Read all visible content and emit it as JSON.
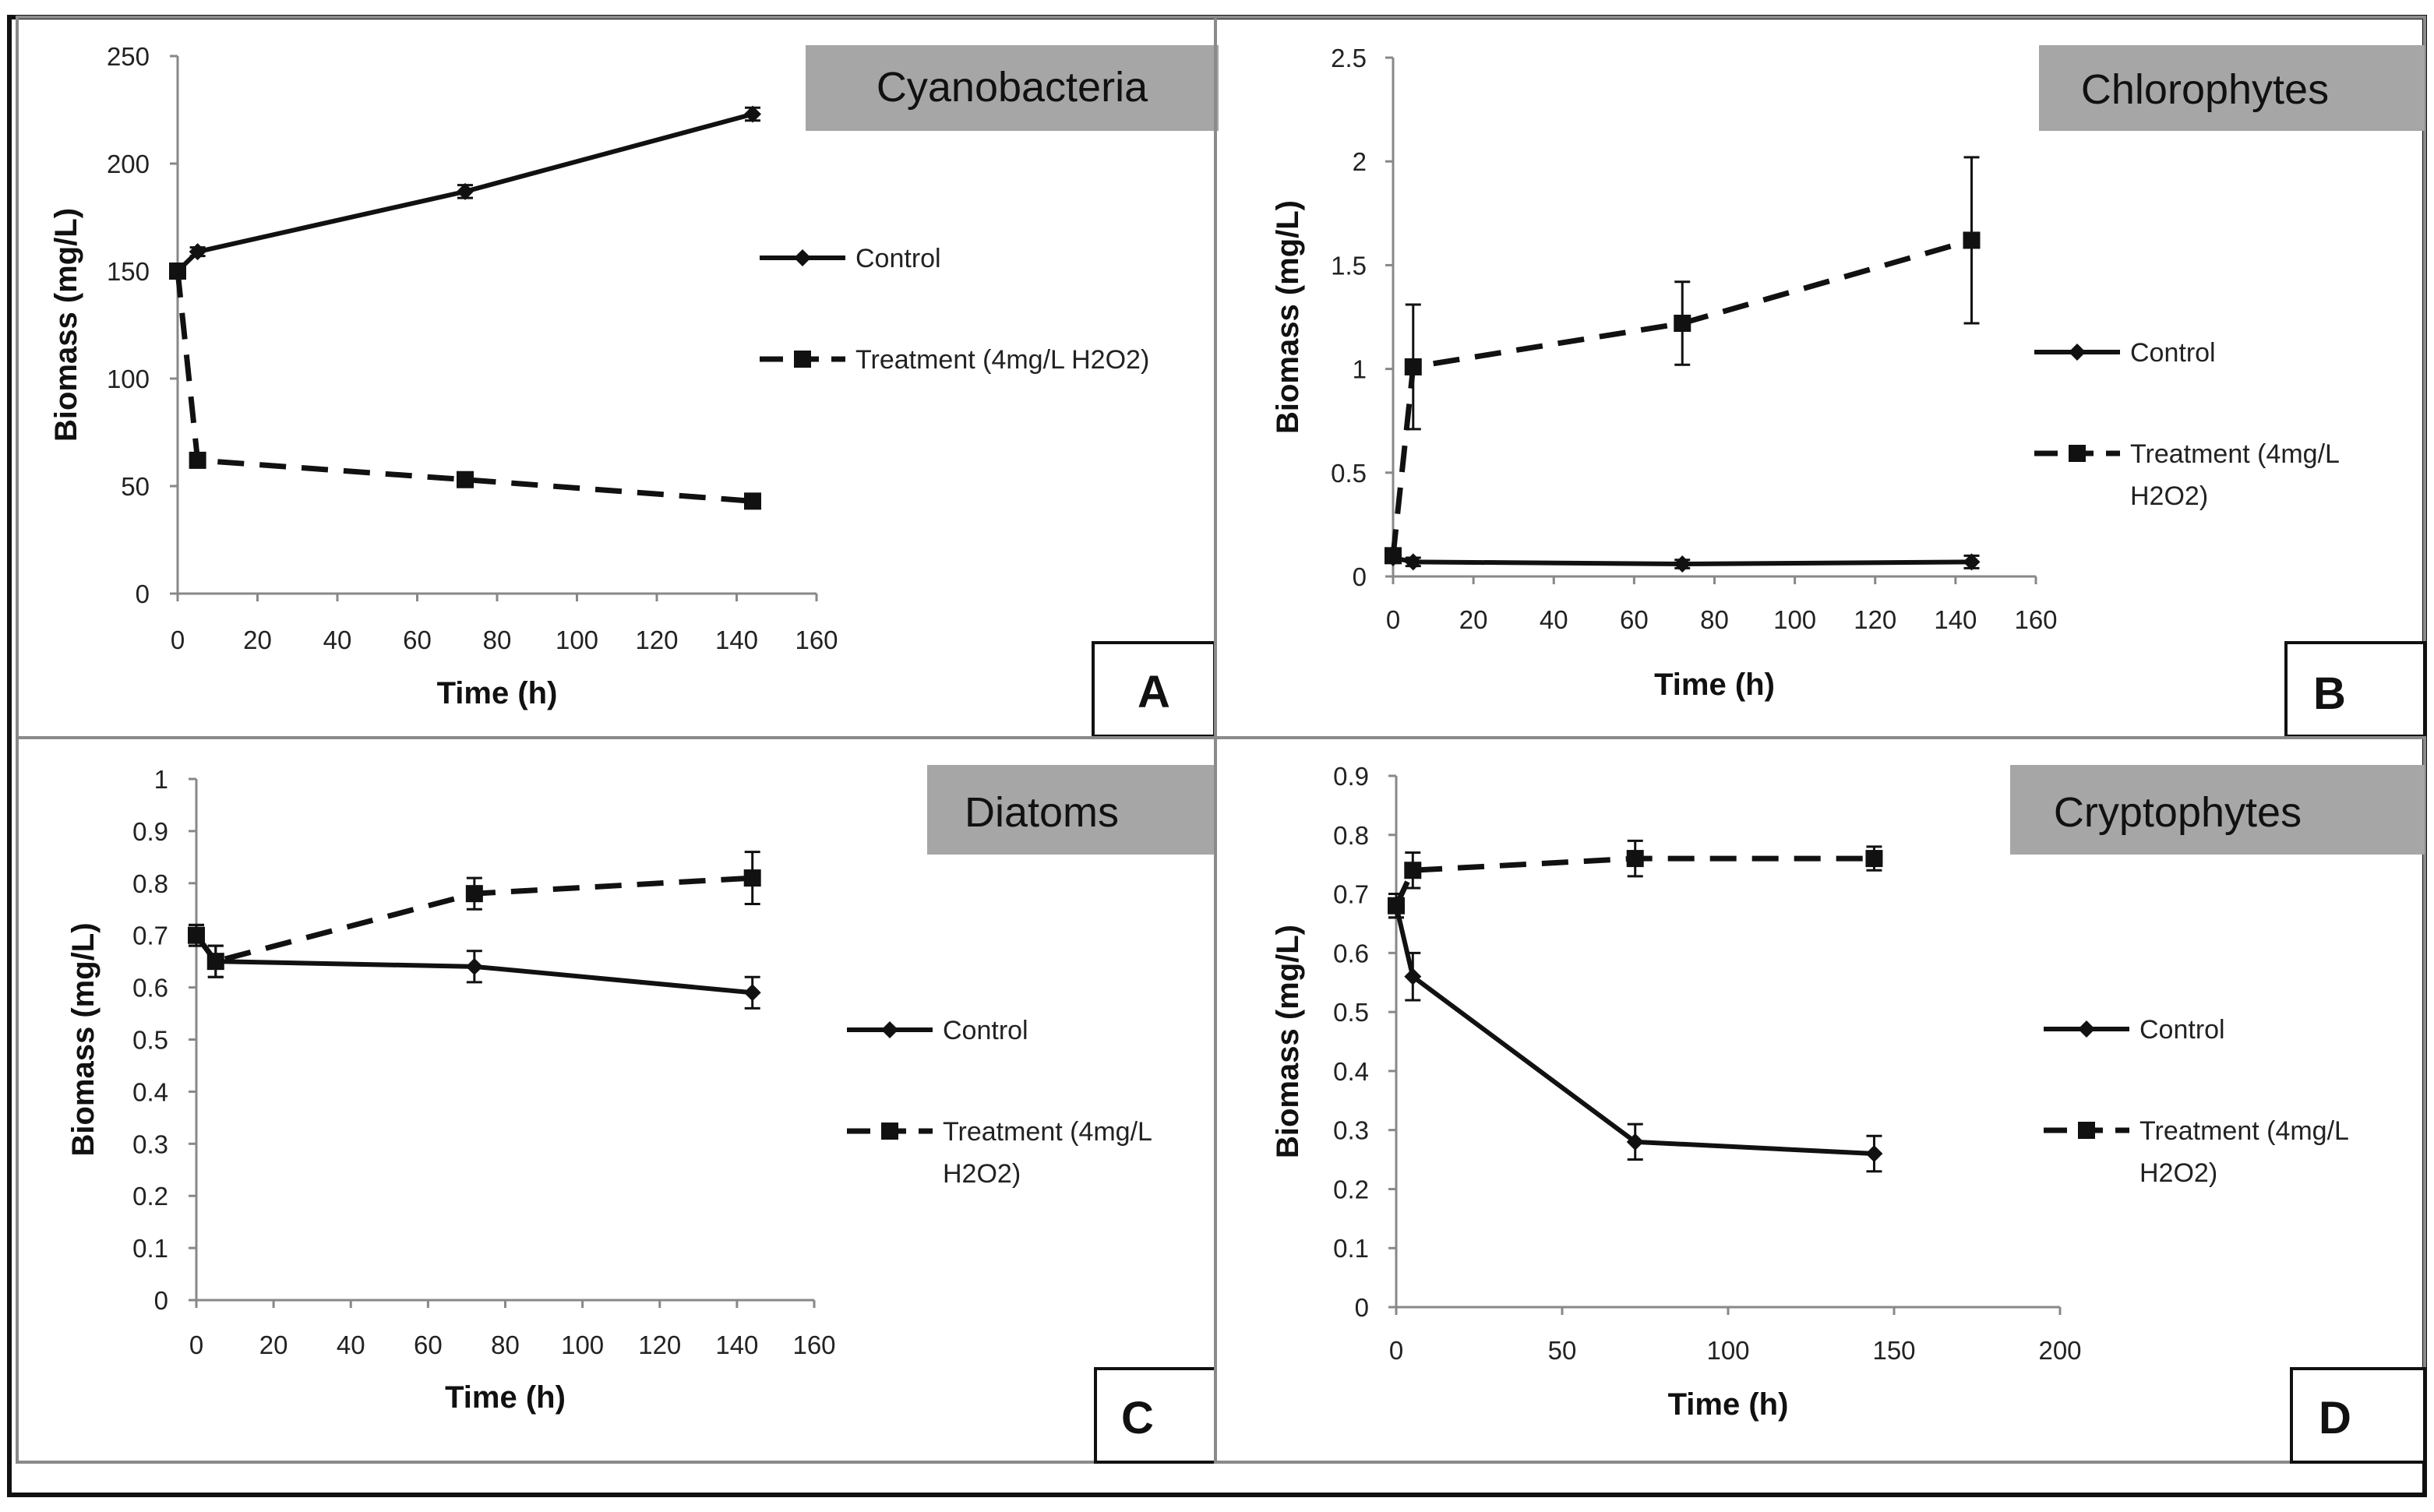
{
  "figure": {
    "legend_labels": {
      "control": "Control",
      "treatment": "Treatment (4mg/L H2O2)"
    }
  },
  "chart_data": [
    {
      "type": "line",
      "panel": "A",
      "title": "Cyanobacteria",
      "xlabel": "Time (h)",
      "ylabel": "Biomass (mg/L)",
      "xlim": [
        0,
        160
      ],
      "xticks": [
        0,
        20,
        40,
        60,
        80,
        100,
        120,
        140,
        160
      ],
      "xtick_labels": [
        "0",
        "20",
        "40",
        "60",
        "80",
        "100",
        "120",
        "140",
        "160"
      ],
      "ylim": [
        0,
        250
      ],
      "yticks": [
        0,
        50,
        100,
        150,
        200,
        250
      ],
      "ytick_labels": [
        "0",
        "50",
        "100",
        "150",
        "200",
        "250"
      ],
      "legend": {
        "position": "right",
        "labels": [
          "Control",
          "Treatment (4mg/L H2O2)"
        ]
      },
      "series": [
        {
          "name": "Control",
          "style": "solid",
          "marker": "diamond",
          "x": [
            0,
            5,
            72,
            144
          ],
          "y": [
            150,
            159,
            187,
            223
          ],
          "err": [
            2,
            2,
            3,
            3
          ]
        },
        {
          "name": "Treatment (4mg/L H2O2)",
          "style": "dashed",
          "marker": "square",
          "x": [
            0,
            5,
            72,
            144
          ],
          "y": [
            150,
            62,
            53,
            43
          ],
          "err": [
            2,
            2,
            2,
            2
          ]
        }
      ]
    },
    {
      "type": "line",
      "panel": "B",
      "title": "Chlorophytes",
      "xlabel": "Time (h)",
      "ylabel": "Biomass (mg/L)",
      "xlim": [
        0,
        160
      ],
      "xticks": [
        0,
        20,
        40,
        60,
        80,
        100,
        120,
        140,
        160
      ],
      "xtick_labels": [
        "0",
        "20",
        "40",
        "60",
        "80",
        "100",
        "120",
        "140",
        "160"
      ],
      "ylim": [
        0,
        2.5
      ],
      "yticks": [
        0,
        0.5,
        1,
        1.5,
        2,
        2.5
      ],
      "ytick_labels": [
        "0",
        "0.5",
        "1",
        "1.5",
        "2",
        "2.5"
      ],
      "legend": {
        "position": "right",
        "labels": [
          "Control",
          "Treatment (4mg/L",
          "H2O2)"
        ]
      },
      "series": [
        {
          "name": "Control",
          "style": "solid",
          "marker": "diamond",
          "x": [
            0,
            5,
            72,
            144
          ],
          "y": [
            0.09,
            0.07,
            0.06,
            0.07
          ],
          "err": [
            0.02,
            0.02,
            0.02,
            0.03
          ]
        },
        {
          "name": "Treatment (4mg/L H2O2)",
          "style": "dashed",
          "marker": "square",
          "x": [
            0,
            5,
            72,
            144
          ],
          "y": [
            0.1,
            1.01,
            1.22,
            1.62
          ],
          "err": [
            0.02,
            0.3,
            0.2,
            0.4
          ]
        }
      ]
    },
    {
      "type": "line",
      "panel": "C",
      "title": "Diatoms",
      "xlabel": "Time (h)",
      "ylabel": "Biomass (mg/L)",
      "xlim": [
        0,
        160
      ],
      "xticks": [
        0,
        20,
        40,
        60,
        80,
        100,
        120,
        140,
        160
      ],
      "xtick_labels": [
        "0",
        "20",
        "40",
        "60",
        "80",
        "100",
        "120",
        "140",
        "160"
      ],
      "ylim": [
        0,
        1
      ],
      "yticks": [
        0,
        0.1,
        0.2,
        0.3,
        0.4,
        0.5,
        0.6,
        0.7,
        0.8,
        0.9,
        1
      ],
      "ytick_labels": [
        "0",
        "0.1",
        "0.2",
        "0.3",
        "0.4",
        "0.5",
        "0.6",
        "0.7",
        "0.8",
        "0.9",
        "1"
      ],
      "legend": {
        "position": "right",
        "labels": [
          "Control",
          "Treatment (4mg/L",
          "H2O2)"
        ]
      },
      "series": [
        {
          "name": "Control",
          "style": "solid",
          "marker": "diamond",
          "x": [
            0,
            5,
            72,
            144
          ],
          "y": [
            0.7,
            0.65,
            0.64,
            0.59
          ],
          "err": [
            0.02,
            0.03,
            0.03,
            0.03
          ]
        },
        {
          "name": "Treatment (4mg/L H2O2)",
          "style": "dashed",
          "marker": "square",
          "x": [
            0,
            5,
            72,
            144
          ],
          "y": [
            0.7,
            0.65,
            0.78,
            0.81
          ],
          "err": [
            0.02,
            0.03,
            0.03,
            0.05
          ]
        }
      ]
    },
    {
      "type": "line",
      "panel": "D",
      "title": "Cryptophytes",
      "xlabel": "Time (h)",
      "ylabel": "Biomass (mg/L)",
      "xlim": [
        0,
        200
      ],
      "xticks": [
        0,
        50,
        100,
        150,
        200
      ],
      "xtick_labels": [
        "0",
        "50",
        "100",
        "150",
        "200"
      ],
      "ylim": [
        0,
        0.9
      ],
      "yticks": [
        0,
        0.1,
        0.2,
        0.3,
        0.4,
        0.5,
        0.6,
        0.7,
        0.8,
        0.9
      ],
      "ytick_labels": [
        "0",
        "0.1",
        "0.2",
        "0.3",
        "0.4",
        "0.5",
        "0.6",
        "0.7",
        "0.8",
        "0.9"
      ],
      "legend": {
        "position": "right",
        "labels": [
          "Control",
          "Treatment (4mg/L",
          "H2O2)"
        ]
      },
      "series": [
        {
          "name": "Control",
          "style": "solid",
          "marker": "diamond",
          "x": [
            0,
            5,
            72,
            144
          ],
          "y": [
            0.68,
            0.56,
            0.28,
            0.26
          ],
          "err": [
            0.02,
            0.04,
            0.03,
            0.03
          ]
        },
        {
          "name": "Treatment (4mg/L H2O2)",
          "style": "dashed",
          "marker": "square",
          "x": [
            0,
            5,
            72,
            144
          ],
          "y": [
            0.68,
            0.74,
            0.76,
            0.76
          ],
          "err": [
            0.02,
            0.03,
            0.03,
            0.02
          ]
        }
      ]
    }
  ]
}
